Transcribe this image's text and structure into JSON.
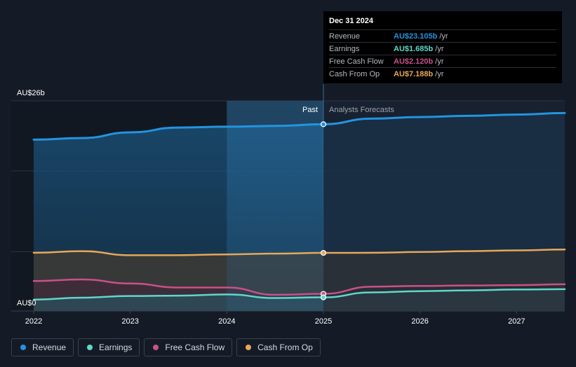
{
  "chart_data": {
    "type": "area",
    "x_range": [
      2022,
      2027.5
    ],
    "y_range": [
      0,
      26
    ],
    "y_unit": "AU$b",
    "y_labels": [
      {
        "value": 26,
        "label": "AU$26b"
      },
      {
        "value": 0,
        "label": "AU$0"
      }
    ],
    "x_ticks": [
      {
        "value": 2022,
        "label": "2022"
      },
      {
        "value": 2023,
        "label": "2023"
      },
      {
        "value": 2024,
        "label": "2024"
      },
      {
        "value": 2025,
        "label": "2025"
      },
      {
        "value": 2026,
        "label": "2026"
      },
      {
        "value": 2027,
        "label": "2027"
      }
    ],
    "divider_x": 2025,
    "highlight_start_x": 2024,
    "past_label": "Past",
    "forecast_label": "Analysts Forecasts",
    "series": [
      {
        "name": "Revenue",
        "color": "#2394df",
        "points": [
          [
            2022,
            21.2
          ],
          [
            2022.5,
            21.4
          ],
          [
            2023,
            22.1
          ],
          [
            2023.5,
            22.7
          ],
          [
            2024,
            22.8
          ],
          [
            2024.5,
            22.9
          ],
          [
            2025,
            23.105
          ],
          [
            2025.5,
            23.8
          ],
          [
            2026,
            24.0
          ],
          [
            2026.5,
            24.15
          ],
          [
            2027,
            24.3
          ],
          [
            2027.5,
            24.5
          ]
        ]
      },
      {
        "name": "Cash From Op",
        "color": "#e6a85a",
        "points": [
          [
            2022,
            7.2
          ],
          [
            2022.5,
            7.4
          ],
          [
            2023,
            6.9
          ],
          [
            2023.5,
            6.9
          ],
          [
            2024,
            7.0
          ],
          [
            2024.5,
            7.1
          ],
          [
            2025,
            7.188
          ],
          [
            2025.5,
            7.2
          ],
          [
            2026,
            7.3
          ],
          [
            2026.5,
            7.4
          ],
          [
            2027,
            7.5
          ],
          [
            2027.5,
            7.6
          ]
        ]
      },
      {
        "name": "Free Cash Flow",
        "color": "#c8518a",
        "points": [
          [
            2022,
            3.7
          ],
          [
            2022.5,
            3.9
          ],
          [
            2023,
            3.4
          ],
          [
            2023.5,
            2.9
          ],
          [
            2024,
            2.9
          ],
          [
            2024.5,
            2.0
          ],
          [
            2025,
            2.12
          ],
          [
            2025.5,
            3.0
          ],
          [
            2026,
            3.1
          ],
          [
            2026.5,
            3.15
          ],
          [
            2027,
            3.2
          ],
          [
            2027.5,
            3.3
          ]
        ]
      },
      {
        "name": "Earnings",
        "color": "#5ed8c9",
        "points": [
          [
            2022,
            1.4
          ],
          [
            2022.5,
            1.65
          ],
          [
            2023,
            1.85
          ],
          [
            2023.5,
            1.9
          ],
          [
            2024,
            2.05
          ],
          [
            2024.5,
            1.6
          ],
          [
            2025,
            1.685
          ],
          [
            2025.5,
            2.3
          ],
          [
            2026,
            2.45
          ],
          [
            2026.5,
            2.55
          ],
          [
            2027,
            2.65
          ],
          [
            2027.5,
            2.7
          ]
        ]
      }
    ]
  },
  "tooltip": {
    "date": "Dec 31 2024",
    "rows": [
      {
        "label": "Revenue",
        "value": "AU$23.105b",
        "unit": "/yr",
        "color": "#2394df"
      },
      {
        "label": "Earnings",
        "value": "AU$1.685b",
        "unit": "/yr",
        "color": "#5ed8c9"
      },
      {
        "label": "Free Cash Flow",
        "value": "AU$2.120b",
        "unit": "/yr",
        "color": "#c8518a"
      },
      {
        "label": "Cash From Op",
        "value": "AU$7.188b",
        "unit": "/yr",
        "color": "#e6a85a"
      }
    ]
  },
  "legend": [
    {
      "label": "Revenue",
      "color": "#2394df"
    },
    {
      "label": "Earnings",
      "color": "#5ed8c9"
    },
    {
      "label": "Free Cash Flow",
      "color": "#c8518a"
    },
    {
      "label": "Cash From Op",
      "color": "#e6a85a"
    }
  ]
}
